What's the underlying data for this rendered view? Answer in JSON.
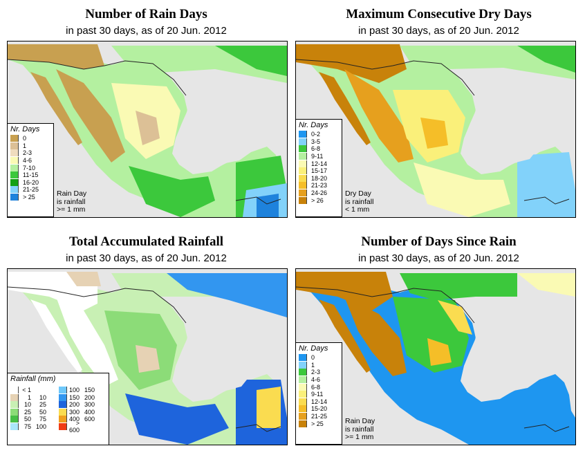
{
  "panels": [
    {
      "title": "Number of Rain Days",
      "subtitle": "in past 30 days, as of  20 Jun. 2012"
    },
    {
      "title": "Maximum Consecutive Dry Days",
      "subtitle": "in past 30 days, as of  20 Jun. 2012"
    },
    {
      "title": "Total Accumulated Rainfall",
      "subtitle": "in past 30 days, as of  20 Jun. 2012"
    },
    {
      "title": "Number of Days Since Rain",
      "subtitle": "in past 30 days, as of  20 Jun. 2012"
    }
  ],
  "legends": {
    "rain_days": {
      "title": "Nr. Days",
      "items": [
        {
          "label": "0",
          "color": "#c8a050"
        },
        {
          "label": "1",
          "color": "#dcc096"
        },
        {
          "label": "2-3",
          "color": "#f0dcbe"
        },
        {
          "label": "4-6",
          "color": "#fafab4"
        },
        {
          "label": "7-10",
          "color": "#b4f0a0"
        },
        {
          "label": "11-15",
          "color": "#3cc83c"
        },
        {
          "label": "16-20",
          "color": "#14a014"
        },
        {
          "label": "21-25",
          "color": "#82d2fa"
        },
        {
          "label": "> 25",
          "color": "#1e82dc"
        }
      ],
      "note": [
        "Rain Day",
        "is rainfall",
        ">= 1 mm"
      ]
    },
    "dry_days": {
      "title": "Nr. Days",
      "items": [
        {
          "label": "0-2",
          "color": "#1e96f0"
        },
        {
          "label": "3-5",
          "color": "#82d2fa"
        },
        {
          "label": "6-8",
          "color": "#3cc83c"
        },
        {
          "label": "9-11",
          "color": "#b4f0a0"
        },
        {
          "label": "12-14",
          "color": "#fafab4"
        },
        {
          "label": "15-17",
          "color": "#faf07a"
        },
        {
          "label": "18-20",
          "color": "#fadc50"
        },
        {
          "label": "21-23",
          "color": "#f5be28"
        },
        {
          "label": "24-26",
          "color": "#e6a01e"
        },
        {
          "label": "> 26",
          "color": "#c8820a"
        }
      ],
      "note": [
        "Dry Day",
        "is rainfall",
        "< 1 mm"
      ]
    },
    "rainfall": {
      "title": "Rainfall (mm)",
      "left": [
        {
          "a": "< 1",
          "b": "",
          "color": "#ffffff"
        },
        {
          "a": "1",
          "b": "10",
          "color": "#e6d2b4"
        },
        {
          "a": "10",
          "b": "25",
          "color": "#c8f0b4"
        },
        {
          "a": "25",
          "b": "50",
          "color": "#8cdc78"
        },
        {
          "a": "50",
          "b": "75",
          "color": "#46be46"
        },
        {
          "a": "75",
          "b": "100",
          "color": "#aae6fa"
        }
      ],
      "right": [
        {
          "a": "100",
          "b": "150",
          "color": "#6ec8fa"
        },
        {
          "a": "150",
          "b": "200",
          "color": "#3296f0"
        },
        {
          "a": "200",
          "b": "300",
          "color": "#1e64dc"
        },
        {
          "a": "300",
          "b": "400",
          "color": "#fadc50"
        },
        {
          "a": "400",
          "b": "600",
          "color": "#f0a01e"
        },
        {
          "a": "> 600",
          "b": "",
          "color": "#f03c14"
        }
      ]
    },
    "since_rain": {
      "title": "Nr. Days",
      "items": [
        {
          "label": "0",
          "color": "#1e96f0"
        },
        {
          "label": "1",
          "color": "#82d2fa"
        },
        {
          "label": "2-3",
          "color": "#3cc83c"
        },
        {
          "label": "4-6",
          "color": "#b4f0a0"
        },
        {
          "label": "6-8",
          "color": "#fafab4"
        },
        {
          "label": "9-11",
          "color": "#faf07a"
        },
        {
          "label": "12-14",
          "color": "#fadc50"
        },
        {
          "label": "15-20",
          "color": "#f5be28"
        },
        {
          "label": "21-25",
          "color": "#e6a01e"
        },
        {
          "label": "> 25",
          "color": "#c8820a"
        }
      ],
      "note": [
        "Rain Day",
        "is rainfall",
        ">= 1 mm"
      ]
    }
  }
}
